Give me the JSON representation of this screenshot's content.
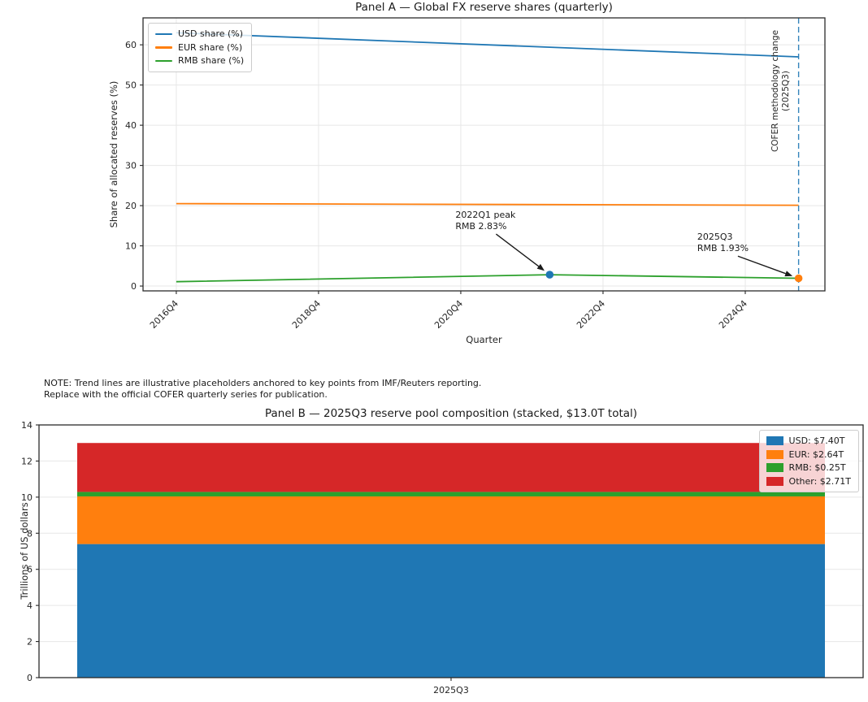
{
  "note": {
    "line1": "NOTE: Trend lines are illustrative placeholders anchored to key points from IMF/Reuters reporting.",
    "line2": "Replace with the official COFER quarterly series for publication."
  },
  "chart_data": [
    {
      "type": "line",
      "title": "Panel A — Global FX reserve shares (quarterly)",
      "xlabel": "Quarter",
      "ylabel": "Share of allocated reserves (%)",
      "legend_position": "upper left",
      "grid": true,
      "xlim_quarters": [
        -1.87,
        36.48
      ],
      "ylim": [
        -1.2,
        66.7
      ],
      "y_ticks": [
        0,
        10,
        20,
        30,
        40,
        50,
        60
      ],
      "x_ticks": [
        {
          "label": "2016Q4",
          "q": 0
        },
        {
          "label": "2018Q4",
          "q": 8
        },
        {
          "label": "2020Q4",
          "q": 16
        },
        {
          "label": "2022Q4",
          "q": 24
        },
        {
          "label": "2024Q4",
          "q": 32
        }
      ],
      "quarter_index_base": "2016Q4 = 0, one unit per quarter, 2025Q3 = 35",
      "series": [
        {
          "name": "USD share (%)",
          "color": "#1f77b4",
          "points": [
            {
              "quarter": "2016Q4",
              "q": 0,
              "value": 63.0
            },
            {
              "quarter": "2025Q3",
              "q": 35,
              "value": 57.0
            }
          ]
        },
        {
          "name": "EUR share (%)",
          "color": "#ff7f0e",
          "points": [
            {
              "quarter": "2016Q4",
              "q": 0,
              "value": 20.5
            },
            {
              "quarter": "2025Q3",
              "q": 35,
              "value": 20.1
            }
          ]
        },
        {
          "name": "RMB share (%)",
          "color": "#2ca02c",
          "points": [
            {
              "quarter": "2016Q4",
              "q": 0,
              "value": 1.08
            },
            {
              "quarter": "2022Q1",
              "q": 21,
              "value": 2.83
            },
            {
              "quarter": "2025Q3",
              "q": 35,
              "value": 1.93
            }
          ]
        }
      ],
      "markers": [
        {
          "quarter": "2022Q1",
          "q": 21,
          "value": 2.83,
          "color": "#1f77b4"
        },
        {
          "quarter": "2025Q3",
          "q": 35,
          "value": 1.93,
          "color": "#ff7f0e"
        }
      ],
      "annotations": [
        {
          "name": "annotation-2022q1-peak",
          "lines": [
            "2022Q1 peak",
            "RMB 2.83%"
          ],
          "text": {
            "q": 15.7,
            "value": 19.0
          },
          "point": {
            "q": 21,
            "value": 2.83
          }
        },
        {
          "name": "annotation-2025q3",
          "lines": [
            "2025Q3",
            "RMB 1.93%"
          ],
          "text": {
            "q": 29.3,
            "value": 13.5
          },
          "point": {
            "q": 35,
            "value": 1.93
          }
        }
      ],
      "vline": {
        "q": 35,
        "quarter": "2025Q3",
        "color": "#1f77b4",
        "style": "dashed",
        "label_lines": [
          "COFER methodology change",
          "(2025Q3)"
        ]
      }
    },
    {
      "type": "bar",
      "subtype": "stacked_bar",
      "title": "Panel B — 2025Q3 reserve pool composition (stacked, $13.0T total)",
      "xlabel": "",
      "ylabel": "Trillions of US dollars",
      "legend_position": "upper right",
      "grid": true,
      "categories": [
        "2025Q3"
      ],
      "ylim": [
        0,
        14
      ],
      "y_ticks": [
        0,
        2,
        4,
        6,
        8,
        10,
        12,
        14
      ],
      "total": 13.0,
      "series": [
        {
          "name": "USD",
          "value": 7.4,
          "color": "#1f77b4",
          "legend": "USD: $7.40T"
        },
        {
          "name": "EUR",
          "value": 2.64,
          "color": "#ff7f0e",
          "legend": "EUR: $2.64T"
        },
        {
          "name": "RMB",
          "value": 0.25,
          "color": "#2ca02c",
          "legend": "RMB: $0.25T"
        },
        {
          "name": "Other",
          "value": 2.71,
          "color": "#d62728",
          "legend": "Other: $2.71T"
        }
      ]
    }
  ]
}
